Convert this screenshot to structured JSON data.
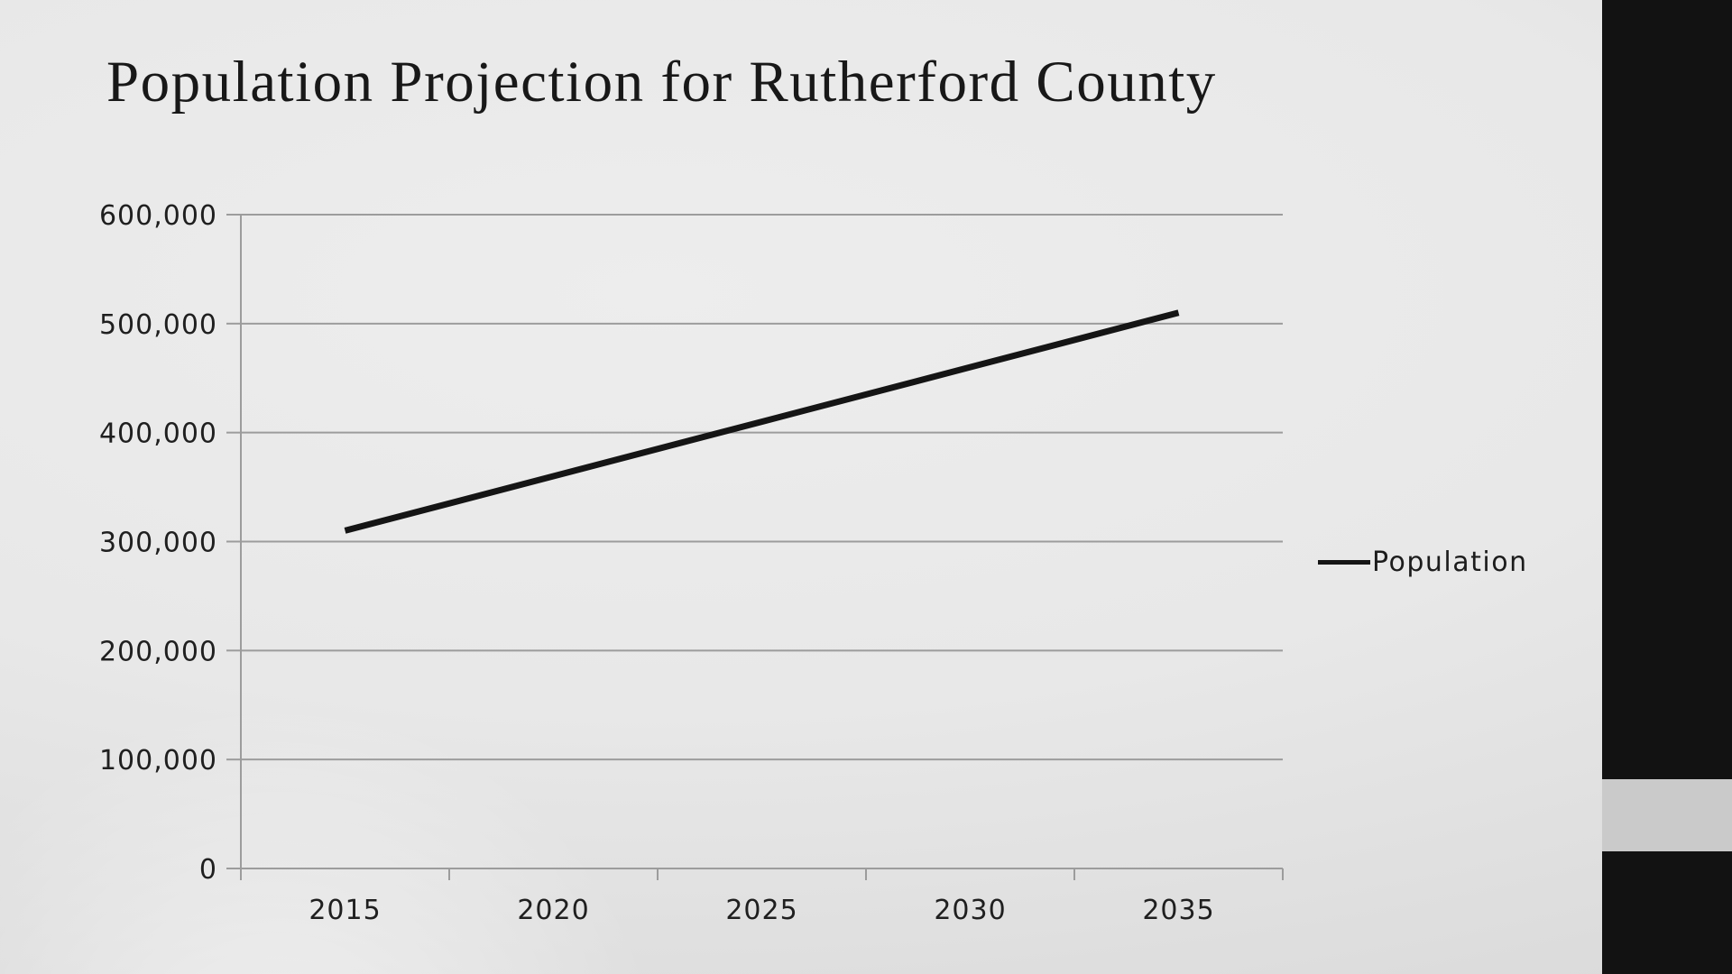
{
  "slide": {
    "title": "Population Projection for Rutherford County"
  },
  "chart_data": {
    "type": "line",
    "title": "Population Projection for Rutherford County",
    "categories": [
      "2015",
      "2020",
      "2025",
      "2030",
      "2035"
    ],
    "series": [
      {
        "name": "Population",
        "values": [
          310000,
          360000,
          410000,
          460000,
          510000
        ]
      }
    ],
    "xlabel": "",
    "ylabel": "",
    "ylim": [
      0,
      600000
    ],
    "y_tick_step": 100000,
    "y_tick_labels": [
      "0",
      "100,000",
      "200,000",
      "300,000",
      "400,000",
      "500,000",
      "600,000"
    ],
    "grid": "horizontal",
    "legend_position": "right-middle",
    "line_color": "#151515",
    "gridline_color": "#9c9c9c",
    "label_color": "#1f1f1f"
  },
  "legend": {
    "label": "Population"
  },
  "decor": {
    "sidebar_color": "#121212",
    "accent_band_color": "#cacaca"
  }
}
